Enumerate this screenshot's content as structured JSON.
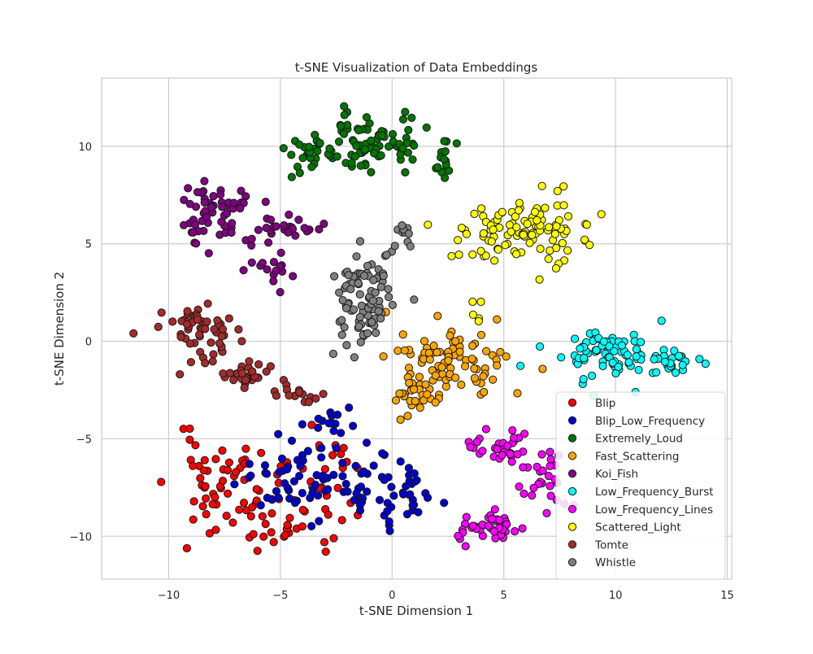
{
  "chart_data": {
    "type": "scatter",
    "title": "t-SNE Visualization of Data Embeddings",
    "xlabel": "t-SNE Dimension 1",
    "ylabel": "t-SNE Dimension 2",
    "xlim": [
      -13,
      15.2
    ],
    "ylim": [
      -12.2,
      13.5
    ],
    "xticks": [
      -10,
      -5,
      0,
      5,
      10,
      15
    ],
    "yticks": [
      -10,
      -5,
      0,
      5,
      10
    ],
    "grid": true,
    "legend_position": "lower-right",
    "series": [
      {
        "name": "Blip",
        "color": "#ff0000",
        "clusters": [
          {
            "cx": -7.5,
            "cy": -7.2,
            "sx": 1.6,
            "sy": 1.6,
            "n": 55,
            "seed": 11
          },
          {
            "cx": -3.5,
            "cy": -7.5,
            "sx": 1.4,
            "sy": 1.8,
            "n": 35,
            "seed": 12
          },
          {
            "cx": -5.5,
            "cy": -9.5,
            "sx": 1.5,
            "sy": 0.6,
            "n": 20,
            "seed": 13
          }
        ]
      },
      {
        "name": "Blip_Low_Frequency",
        "color": "#0000cd",
        "clusters": [
          {
            "cx": -4.5,
            "cy": -7.0,
            "sx": 1.5,
            "sy": 1.6,
            "n": 45,
            "seed": 21
          },
          {
            "cx": -1.2,
            "cy": -7.3,
            "sx": 1.5,
            "sy": 1.4,
            "n": 45,
            "seed": 22
          },
          {
            "cx": 0.6,
            "cy": -7.5,
            "sx": 0.6,
            "sy": 1.2,
            "n": 20,
            "seed": 23
          },
          {
            "cx": -2.8,
            "cy": -4.0,
            "sx": 0.8,
            "sy": 0.6,
            "n": 15,
            "seed": 24
          }
        ]
      },
      {
        "name": "Extremely_Loud",
        "color": "#007500",
        "clusters": [
          {
            "cx": -1.0,
            "cy": 10.2,
            "sx": 1.8,
            "sy": 1.0,
            "n": 90,
            "seed": 31
          },
          {
            "cx": -3.5,
            "cy": 9.7,
            "sx": 0.8,
            "sy": 0.5,
            "n": 20,
            "seed": 32
          },
          {
            "cx": 2.2,
            "cy": 9.0,
            "sx": 0.4,
            "sy": 0.6,
            "n": 12,
            "seed": 33
          }
        ]
      },
      {
        "name": "Fast_Scattering",
        "color": "#ffa500",
        "clusters": [
          {
            "cx": 2.8,
            "cy": -1.0,
            "sx": 1.6,
            "sy": 1.2,
            "n": 90,
            "seed": 41
          },
          {
            "cx": 1.0,
            "cy": -2.6,
            "sx": 0.6,
            "sy": 0.5,
            "n": 25,
            "seed": 42
          }
        ]
      },
      {
        "name": "Koi_Fish",
        "color": "#800080",
        "clusters": [
          {
            "cx": -8.0,
            "cy": 6.5,
            "sx": 1.1,
            "sy": 1.1,
            "n": 60,
            "seed": 51
          },
          {
            "cx": -4.5,
            "cy": 5.8,
            "sx": 1.1,
            "sy": 0.5,
            "n": 25,
            "seed": 52
          },
          {
            "cx": -5.5,
            "cy": 3.5,
            "sx": 0.7,
            "sy": 0.6,
            "n": 15,
            "seed": 53
          }
        ]
      },
      {
        "name": "Low_Frequency_Burst",
        "color": "#00ffff",
        "clusters": [
          {
            "cx": 9.5,
            "cy": -0.5,
            "sx": 1.9,
            "sy": 0.9,
            "n": 80,
            "seed": 61
          },
          {
            "cx": 12.5,
            "cy": -1.0,
            "sx": 1.0,
            "sy": 0.5,
            "n": 25,
            "seed": 62
          }
        ]
      },
      {
        "name": "Low_Frequency_Lines",
        "color": "#ff00ff",
        "clusters": [
          {
            "cx": 4.8,
            "cy": -5.4,
            "sx": 1.1,
            "sy": 0.8,
            "n": 35,
            "seed": 71
          },
          {
            "cx": 4.2,
            "cy": -9.6,
            "sx": 1.1,
            "sy": 0.6,
            "n": 40,
            "seed": 72
          },
          {
            "cx": 7.0,
            "cy": -7.3,
            "sx": 0.9,
            "sy": 1.0,
            "n": 25,
            "seed": 73
          }
        ]
      },
      {
        "name": "Scattered_Light",
        "color": "#ffff00",
        "clusters": [
          {
            "cx": 5.8,
            "cy": 5.8,
            "sx": 1.9,
            "sy": 1.2,
            "n": 110,
            "seed": 81
          },
          {
            "cx": 3.8,
            "cy": 1.5,
            "sx": 0.3,
            "sy": 0.6,
            "n": 5,
            "seed": 82
          }
        ]
      },
      {
        "name": "Tomte",
        "color": "#a52a2a",
        "clusters": [
          {
            "cx": -8.8,
            "cy": 0.6,
            "sx": 1.4,
            "sy": 0.9,
            "n": 55,
            "seed": 91
          },
          {
            "cx": -6.5,
            "cy": -1.7,
            "sx": 1.4,
            "sy": 0.5,
            "n": 30,
            "seed": 92
          },
          {
            "cx": -4.2,
            "cy": -2.7,
            "sx": 0.9,
            "sy": 0.4,
            "n": 15,
            "seed": 93
          }
        ]
      },
      {
        "name": "Whistle",
        "color": "#808080",
        "clusters": [
          {
            "cx": -1.2,
            "cy": 2.2,
            "sx": 0.9,
            "sy": 1.7,
            "n": 90,
            "seed": 101
          },
          {
            "cx": 0.5,
            "cy": 5.5,
            "sx": 0.4,
            "sy": 0.4,
            "n": 10,
            "seed": 102
          }
        ]
      }
    ]
  }
}
